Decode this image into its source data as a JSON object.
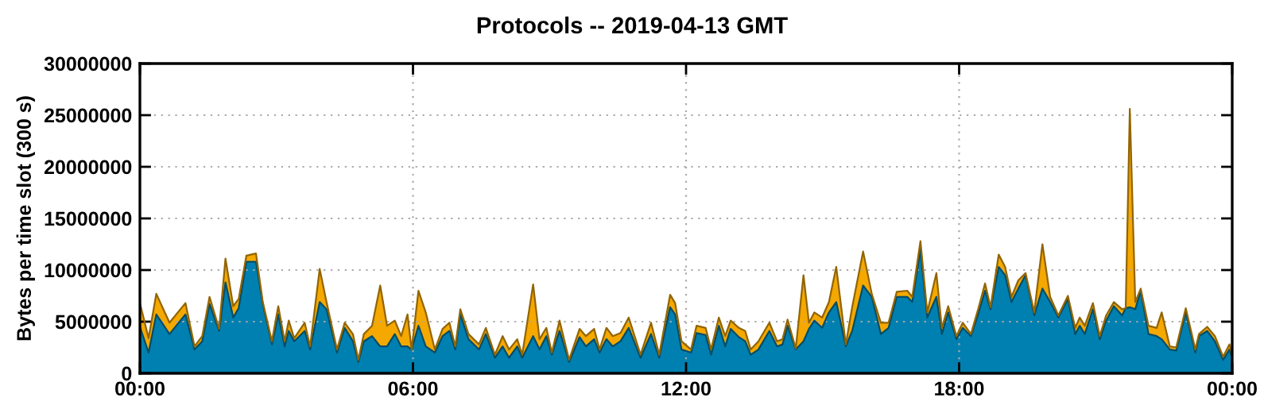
{
  "chart_data": {
    "type": "area",
    "stacked": true,
    "title": "Protocols -- 2019-04-13 GMT",
    "ylabel": "Bytes per time slot (300 s)",
    "x": [
      0,
      0.19,
      0.36,
      0.65,
      1.0,
      1.2,
      1.37,
      1.53,
      1.74,
      1.88,
      2.05,
      2.17,
      2.34,
      2.55,
      2.7,
      2.9,
      3.04,
      3.18,
      3.27,
      3.39,
      3.62,
      3.74,
      3.95,
      4.1,
      4.33,
      4.5,
      4.68,
      4.8,
      4.92,
      5.1,
      5.28,
      5.43,
      5.6,
      5.74,
      5.88,
      5.97,
      6.12,
      6.28,
      6.48,
      6.65,
      6.8,
      6.93,
      7.04,
      7.22,
      7.45,
      7.6,
      7.8,
      7.97,
      8.11,
      8.29,
      8.4,
      8.64,
      8.78,
      8.93,
      9.05,
      9.22,
      9.43,
      9.66,
      9.8,
      9.98,
      10.1,
      10.25,
      10.39,
      10.56,
      10.74,
      11.0,
      11.23,
      11.41,
      11.65,
      11.76,
      11.9,
      12.11,
      12.23,
      12.43,
      12.55,
      12.72,
      12.86,
      12.98,
      13.16,
      13.3,
      13.42,
      13.59,
      13.83,
      14.0,
      14.12,
      14.23,
      14.41,
      14.58,
      14.7,
      14.82,
      14.99,
      15.14,
      15.3,
      15.51,
      15.65,
      15.89,
      16.08,
      16.28,
      16.45,
      16.63,
      16.86,
      16.97,
      17.15,
      17.3,
      17.5,
      17.62,
      17.76,
      17.94,
      18.08,
      18.26,
      18.43,
      18.57,
      18.69,
      18.87,
      19.01,
      19.15,
      19.3,
      19.46,
      19.65,
      19.83,
      20.0,
      20.18,
      20.39,
      20.55,
      20.65,
      20.76,
      20.94,
      21.09,
      21.23,
      21.4,
      21.58,
      21.66,
      21.75,
      21.87,
      21.99,
      22.16,
      22.34,
      22.45,
      22.63,
      22.77,
      22.98,
      23.19,
      23.27,
      23.45,
      23.62,
      23.8,
      23.94,
      24
    ],
    "series": [
      {
        "color": "#0080b0",
        "values": [
          4500000.0,
          2000000.0,
          5700000.0,
          3800000.0,
          5700000.0,
          2300000.0,
          3100000.0,
          6700000.0,
          4100000.0,
          8800000.0,
          5400000.0,
          6300000.0,
          10800000.0,
          10800000.0,
          6700000.0,
          2800000.0,
          5700000.0,
          2600000.0,
          4100000.0,
          3100000.0,
          4100000.0,
          2300000.0,
          6900000.0,
          6200000.0,
          2000000.0,
          4400000.0,
          3100000.0,
          1100000.0,
          3100000.0,
          3600000.0,
          2600000.0,
          2600000.0,
          3800000.0,
          2600000.0,
          2600000.0,
          2300000.0,
          4600000.0,
          2600000.0,
          2000000.0,
          3600000.0,
          4100000.0,
          2300000.0,
          5700000.0,
          3300000.0,
          2300000.0,
          3800000.0,
          1500000.0,
          2600000.0,
          1500000.0,
          2600000.0,
          1500000.0,
          3600000.0,
          2300000.0,
          3600000.0,
          1800000.0,
          4100000.0,
          1100000.0,
          3500000.0,
          2600000.0,
          3300000.0,
          2000000.0,
          3300000.0,
          2600000.0,
          3100000.0,
          4400000.0,
          1500000.0,
          3800000.0,
          1500000.0,
          6400000.0,
          5700000.0,
          2300000.0,
          2000000.0,
          3900000.0,
          3700000.0,
          1800000.0,
          4600000.0,
          2600000.0,
          4300000.0,
          3500000.0,
          3100000.0,
          1800000.0,
          2300000.0,
          4100000.0,
          2600000.0,
          2800000.0,
          4600000.0,
          2300000.0,
          3100000.0,
          4300000.0,
          5100000.0,
          4400000.0,
          5900000.0,
          6900000.0,
          2600000.0,
          4100000.0,
          8500000.0,
          7400000.0,
          3800000.0,
          4400000.0,
          7400000.0,
          7400000.0,
          6900000.0,
          12000000.0,
          5400000.0,
          7400000.0,
          3800000.0,
          5900000.0,
          3300000.0,
          4400000.0,
          3600000.0,
          5900000.0,
          8000000.0,
          6200000.0,
          10300000.0,
          9500000.0,
          6900000.0,
          8200000.0,
          9500000.0,
          5600000.0,
          8200000.0,
          6900000.0,
          5400000.0,
          7200000.0,
          3800000.0,
          4600000.0,
          3800000.0,
          6200000.0,
          3300000.0,
          5100000.0,
          6500000.0,
          5600000.0,
          6300000.0,
          6400000.0,
          6200000.0,
          8000000.0,
          3800000.0,
          3600000.0,
          3300000.0,
          2300000.0,
          2200000.0,
          5900000.0,
          2000000.0,
          3600000.0,
          4100000.0,
          3100000.0,
          1300000.0,
          2300000.0,
          1500000.0
        ]
      },
      {
        "color": "#f5a800",
        "values": [
          2300000.0,
          1400000.0,
          2000000.0,
          1100000.0,
          1100000.0,
          300000.0,
          500000.0,
          700000.0,
          200000.0,
          2300000.0,
          1100000.0,
          900000.0,
          600000.0,
          800000.0,
          200000.0,
          300000.0,
          800000.0,
          500000.0,
          1000000.0,
          300000.0,
          800000.0,
          300000.0,
          3200000.0,
          700000.0,
          300000.0,
          500000.0,
          700000.0,
          200000.0,
          700000.0,
          1000000.0,
          5900000.0,
          2000000.0,
          1300000.0,
          1000000.0,
          3100000.0,
          0,
          3400000.0,
          3300000.0,
          300000.0,
          700000.0,
          800000.0,
          300000.0,
          500000.0,
          500000.0,
          500000.0,
          600000.0,
          300000.0,
          1000000.0,
          800000.0,
          700000.0,
          300000.0,
          5000000.0,
          1000000.0,
          800000.0,
          200000.0,
          1000000.0,
          200000.0,
          800000.0,
          1000000.0,
          1000000.0,
          300000.0,
          1100000.0,
          1000000.0,
          800000.0,
          1000000.0,
          300000.0,
          1100000.0,
          300000.0,
          1200000.0,
          1100000.0,
          800000.0,
          300000.0,
          700000.0,
          700000.0,
          500000.0,
          800000.0,
          1000000.0,
          800000.0,
          900000.0,
          1000000.0,
          500000.0,
          800000.0,
          800000.0,
          500000.0,
          500000.0,
          600000.0,
          100000.0,
          6400000.0,
          600000.0,
          800000.0,
          1000000.0,
          1000000.0,
          3400000.0,
          200000.0,
          2300000.0,
          3300000.0,
          300000.0,
          1100000.0,
          500000.0,
          500000.0,
          600000.0,
          500000.0,
          800000.0,
          500000.0,
          2300000.0,
          600000.0,
          600000.0,
          300000.0,
          500000.0,
          200000.0,
          500000.0,
          700000.0,
          200000.0,
          1200000.0,
          800000.0,
          500000.0,
          800000.0,
          200000.0,
          300000.0,
          4300000.0,
          500000.0,
          200000.0,
          300000.0,
          600000.0,
          800000.0,
          800000.0,
          600000.0,
          300000.0,
          500000.0,
          400000.0,
          600000.0,
          0,
          19200000.0,
          700000.0,
          200000.0,
          800000.0,
          800000.0,
          2600000.0,
          300000.0,
          300000.0,
          400000.0,
          300000.0,
          200000.0,
          400000.0,
          500000.0,
          300000.0,
          500000.0,
          300000.0
        ]
      }
    ],
    "xlim": [
      0,
      24
    ],
    "xticks": [
      {
        "value": 0,
        "label": "00:00"
      },
      {
        "value": 6,
        "label": "06:00"
      },
      {
        "value": 12,
        "label": "12:00"
      },
      {
        "value": 18,
        "label": "18:00"
      },
      {
        "value": 24,
        "label": "00:00"
      }
    ],
    "ylim": [
      0,
      30000000
    ],
    "yticks": [
      0,
      5000000,
      10000000,
      15000000,
      20000000,
      25000000,
      30000000
    ],
    "grid": true,
    "legend": false
  }
}
